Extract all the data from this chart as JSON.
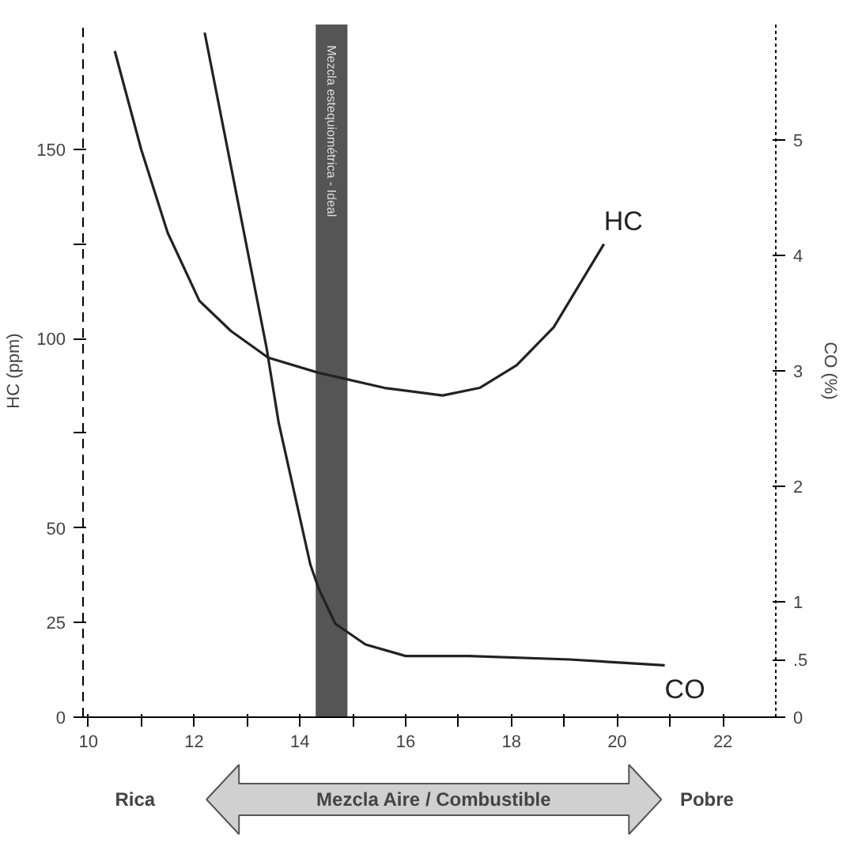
{
  "chart_data": {
    "type": "line",
    "xlabel": null,
    "ylabel": "HC (ppm)",
    "y2label": "CO (%)",
    "xlim": [
      9.9,
      23.0
    ],
    "xticks": [
      10,
      {
        "value": 11,
        "label": null
      },
      12,
      {
        "value": 13,
        "label": null
      },
      14,
      {
        "value": 15,
        "label": null
      },
      16,
      {
        "value": 17,
        "label": null
      },
      18,
      {
        "value": 19,
        "label": null
      },
      20,
      {
        "value": 21,
        "label": null
      },
      22
    ],
    "ylim": [
      0,
      183
    ],
    "yticks": [
      0,
      25,
      50,
      {
        "value": 75,
        "label": null
      },
      100,
      {
        "value": 125,
        "label": null
      },
      150
    ],
    "y2lim": [
      0,
      6.0
    ],
    "y2ticks": [
      0,
      {
        "value": 0.5,
        "label": ".5"
      },
      1,
      2,
      3,
      4,
      5
    ],
    "series": [
      {
        "name": "HC",
        "color": "#222222",
        "axis": "y",
        "x": [
          10.5,
          11.0,
          11.5,
          12.1,
          12.7,
          13.4,
          14.35,
          15.6,
          16.7,
          17.4,
          18.1,
          18.8,
          19.75
        ],
        "values": [
          176,
          150,
          128,
          110,
          102,
          95,
          91,
          87,
          85,
          87,
          93,
          103,
          125
        ]
      },
      {
        "name": "CO",
        "color": "#222222",
        "axis": "y2",
        "x": [
          12.2,
          12.75,
          13.37,
          13.6,
          14.2,
          14.36,
          14.67,
          15.24,
          16.0,
          17.2,
          19.1,
          20.9
        ],
        "values": [
          5.93,
          4.65,
          3.2,
          2.55,
          1.32,
          1.11,
          0.81,
          0.63,
          0.53,
          0.53,
          0.5,
          0.45
        ]
      }
    ],
    "bands": [
      {
        "axis": "x",
        "from": 14.3,
        "to": 14.9,
        "label": "Mezcla estequiométrica - Ideal",
        "color": "#555555"
      }
    ],
    "annotations": [
      "Rica",
      "Mezcla Aire / Combustible",
      "Pobre"
    ],
    "grid": false
  }
}
